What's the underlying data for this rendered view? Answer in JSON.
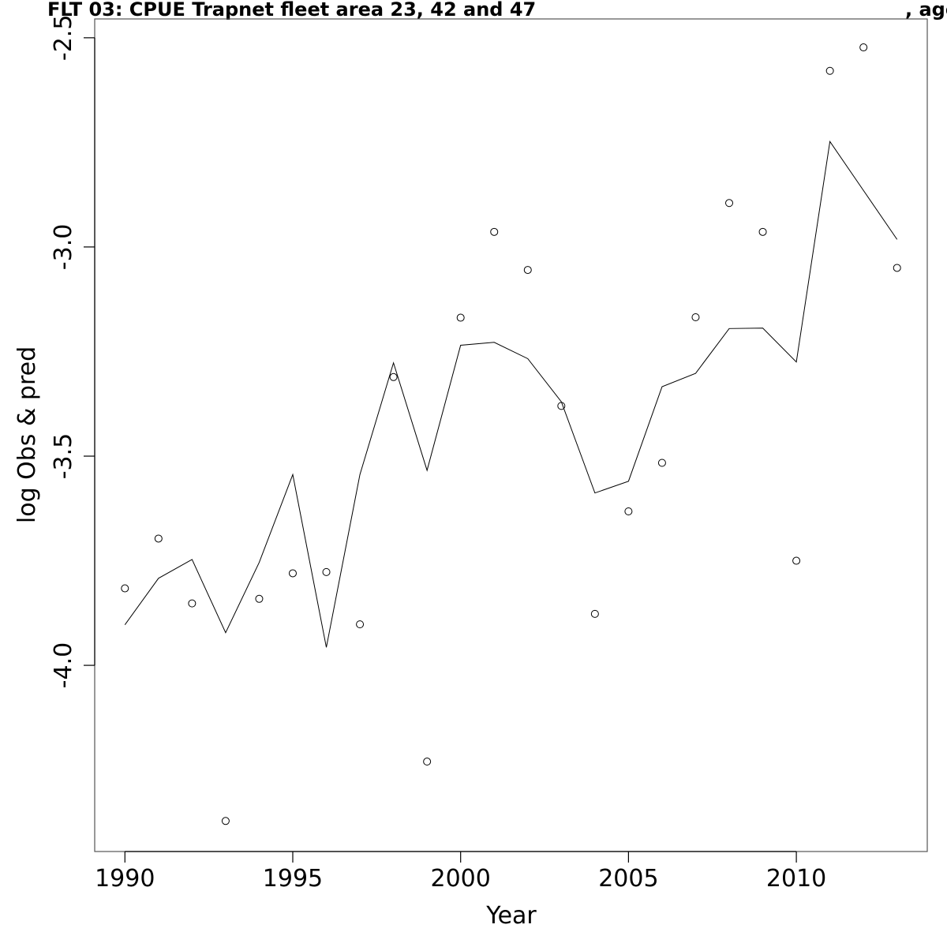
{
  "chart_data": {
    "type": "scatter",
    "title": "FLT 03: CPUE Trapnet fleet area 23, 42 and 47",
    "title_suffix": ", age",
    "xlabel": "Year",
    "ylabel": "log Obs & pred",
    "xlim": [
      1989.1,
      2013.9
    ],
    "ylim": [
      -4.445,
      -2.455
    ],
    "xticks": [
      1990,
      1995,
      2000,
      2005,
      2010
    ],
    "yticks": [
      -4.0,
      -3.5,
      -3.0,
      -2.5
    ],
    "ytick_labels": [
      "-4.0",
      "-3.5",
      "-3.0",
      "-2.5"
    ],
    "grid": false,
    "legend": "none",
    "series": [
      {
        "style": "points",
        "x": [
          1990,
          1991,
          1992,
          1993,
          1994,
          1995,
          1996,
          1997,
          1998,
          1999,
          2000,
          2001,
          2002,
          2003,
          2004,
          2005,
          2006,
          2007,
          2008,
          2009,
          2010,
          2011,
          2012,
          2013
        ],
        "values": [
          -3.816,
          -3.697,
          -3.852,
          -4.372,
          -3.841,
          -3.78,
          -3.777,
          -3.902,
          -3.311,
          -4.23,
          -3.169,
          -2.964,
          -3.055,
          -3.38,
          -3.877,
          -3.632,
          -3.516,
          -3.168,
          -2.895,
          -2.964,
          -3.75,
          -2.579,
          -2.523,
          -3.05
        ]
      },
      {
        "style": "line",
        "x": [
          1990,
          1991,
          1992,
          1993,
          1994,
          1995,
          1996,
          1997,
          1998,
          1999,
          2000,
          2001,
          2002,
          2003,
          2004,
          2005,
          2006,
          2007,
          2008,
          2009,
          2010,
          2011,
          2012,
          2013
        ],
        "values": [
          -3.903,
          -3.792,
          -3.747,
          -3.922,
          -3.754,
          -3.544,
          -3.957,
          -3.544,
          -3.277,
          -3.534,
          -3.235,
          -3.228,
          -3.267,
          -3.37,
          -3.588,
          -3.56,
          -3.334,
          -3.302,
          -3.195,
          -3.194,
          -3.275,
          -2.748,
          -2.865,
          -2.982
        ]
      }
    ]
  }
}
